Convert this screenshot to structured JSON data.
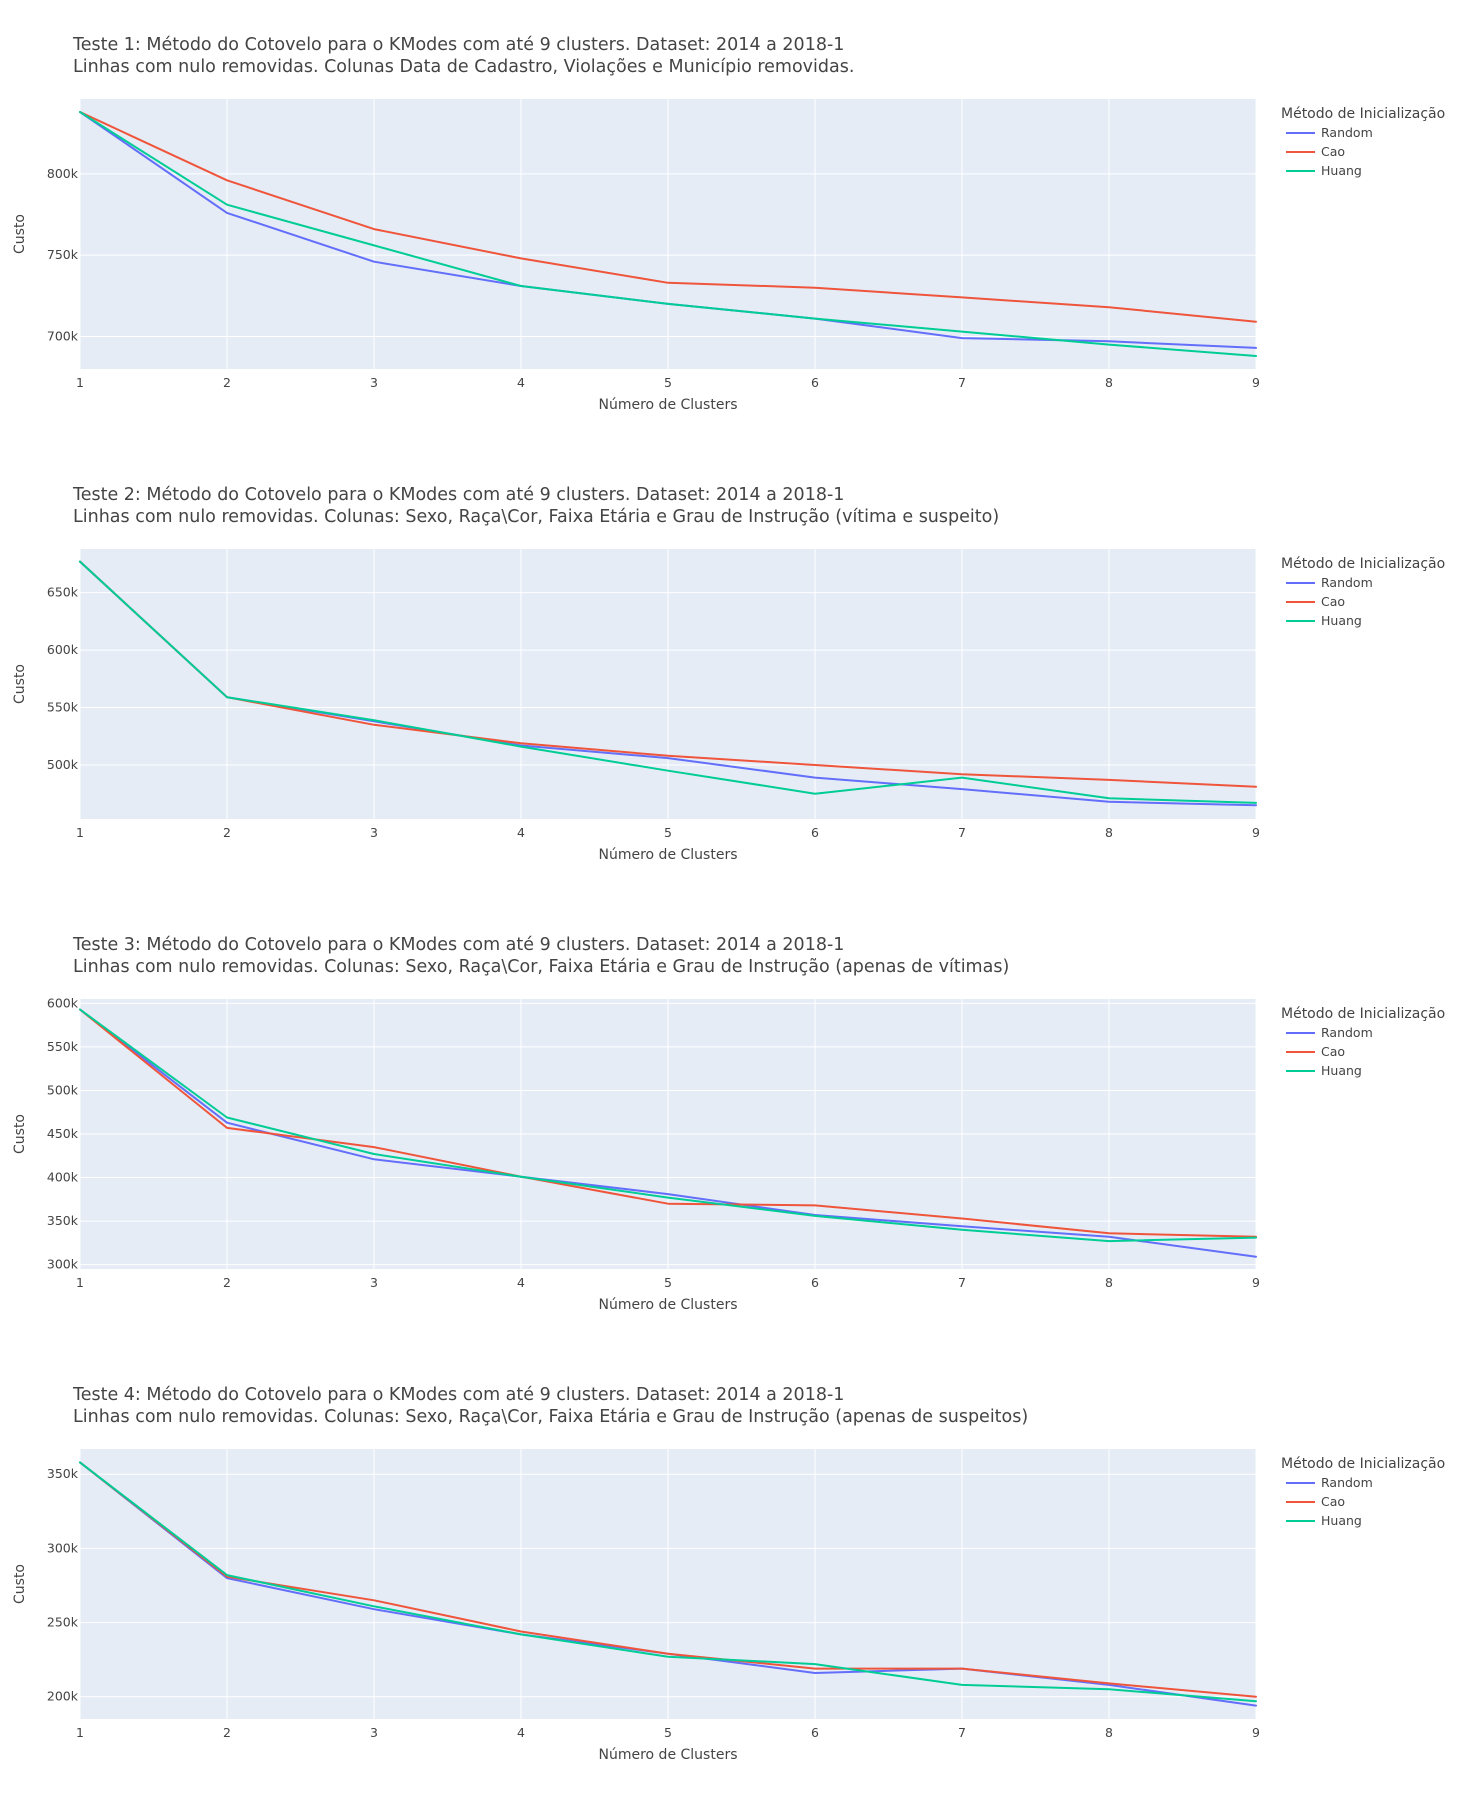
{
  "chart_data": [
    {
      "type": "line",
      "title": "Teste 1: Método do Cotovelo para o KModes com até 9 clusters. Dataset: 2014 a 2018-1",
      "subtitle": "Linhas com nulo removidas. Colunas Data de Cadastro, Violações e Município removidas.",
      "xlabel": "Número de Clusters",
      "ylabel": "Custo",
      "x": [
        1,
        2,
        3,
        4,
        5,
        6,
        7,
        8,
        9
      ],
      "xlim": [
        1,
        9
      ],
      "ylim": [
        680000,
        846000
      ],
      "yticks": [
        700000,
        750000,
        800000
      ],
      "ytick_labels": [
        "700k",
        "750k",
        "800k"
      ],
      "legend_title": "Método de Inicialização",
      "legend_position": "right",
      "grid": true,
      "series": [
        {
          "name": "Random",
          "color": "#636efa",
          "values": [
            838000,
            776000,
            746000,
            731000,
            720000,
            711000,
            699000,
            697000,
            693000
          ]
        },
        {
          "name": "Cao",
          "color": "#ef553b",
          "values": [
            838000,
            796000,
            766000,
            748000,
            733000,
            730000,
            724000,
            718000,
            709000
          ]
        },
        {
          "name": "Huang",
          "color": "#00cc96",
          "values": [
            838000,
            781000,
            756000,
            731000,
            720000,
            711000,
            703000,
            695000,
            688000
          ]
        }
      ]
    },
    {
      "type": "line",
      "title": "Teste 2: Método do Cotovelo para o KModes com até 9 clusters. Dataset: 2014 a 2018-1",
      "subtitle": "Linhas com nulo removidas. Colunas: Sexo, Raça\\Cor, Faixa Etária e Grau de Instrução (vítima e suspeito)",
      "xlabel": "Número de Clusters",
      "ylabel": "Custo",
      "x": [
        1,
        2,
        3,
        4,
        5,
        6,
        7,
        8,
        9
      ],
      "xlim": [
        1,
        9
      ],
      "ylim": [
        453000,
        688000
      ],
      "yticks": [
        500000,
        550000,
        600000,
        650000
      ],
      "ytick_labels": [
        "500k",
        "550k",
        "600k",
        "650k"
      ],
      "legend_title": "Método de Inicialização",
      "legend_position": "right",
      "grid": true,
      "series": [
        {
          "name": "Random",
          "color": "#636efa",
          "values": [
            677000,
            559000,
            538000,
            517000,
            506000,
            489000,
            479000,
            468000,
            465000
          ]
        },
        {
          "name": "Cao",
          "color": "#ef553b",
          "values": [
            677000,
            559000,
            535000,
            519000,
            508000,
            500000,
            492000,
            487000,
            481000
          ]
        },
        {
          "name": "Huang",
          "color": "#00cc96",
          "values": [
            677000,
            559000,
            539000,
            516000,
            495000,
            475000,
            489000,
            471000,
            467000
          ]
        }
      ]
    },
    {
      "type": "line",
      "title": "Teste 3: Método do Cotovelo para o KModes com até 9 clusters. Dataset: 2014 a 2018-1",
      "subtitle": "Linhas com nulo removidas. Colunas: Sexo, Raça\\Cor, Faixa Etária e Grau de Instrução (apenas de vítimas)",
      "xlabel": "Número de Clusters",
      "ylabel": "Custo",
      "x": [
        1,
        2,
        3,
        4,
        5,
        6,
        7,
        8,
        9
      ],
      "xlim": [
        1,
        9
      ],
      "ylim": [
        295000,
        605000
      ],
      "yticks": [
        300000,
        350000,
        400000,
        450000,
        500000,
        550000,
        600000
      ],
      "ytick_labels": [
        "300k",
        "350k",
        "400k",
        "450k",
        "500k",
        "550k",
        "600k"
      ],
      "legend_title": "Método de Inicialização",
      "legend_position": "right",
      "grid": true,
      "series": [
        {
          "name": "Random",
          "color": "#636efa",
          "values": [
            593000,
            463000,
            421000,
            401000,
            381000,
            357000,
            344000,
            332000,
            309000
          ]
        },
        {
          "name": "Cao",
          "color": "#ef553b",
          "values": [
            593000,
            457000,
            435000,
            401000,
            370000,
            368000,
            353000,
            336000,
            332000
          ]
        },
        {
          "name": "Huang",
          "color": "#00cc96",
          "values": [
            593000,
            469000,
            427000,
            401000,
            377000,
            356000,
            340000,
            327000,
            331000
          ]
        }
      ]
    },
    {
      "type": "line",
      "title": "Teste 4: Método do Cotovelo para o KModes com até 9 clusters. Dataset: 2014 a 2018-1",
      "subtitle": "Linhas com nulo removidas. Colunas: Sexo, Raça\\Cor, Faixa Etária e Grau de Instrução (apenas de suspeitos)",
      "xlabel": "Número de Clusters",
      "ylabel": "Custo",
      "x": [
        1,
        2,
        3,
        4,
        5,
        6,
        7,
        8,
        9
      ],
      "xlim": [
        1,
        9
      ],
      "ylim": [
        185000,
        367000
      ],
      "yticks": [
        200000,
        250000,
        300000,
        350000
      ],
      "ytick_labels": [
        "200k",
        "250k",
        "300k",
        "350k"
      ],
      "legend_title": "Método de Inicialização",
      "legend_position": "right",
      "grid": true,
      "series": [
        {
          "name": "Random",
          "color": "#636efa",
          "values": [
            358000,
            280000,
            259000,
            242000,
            229000,
            216000,
            219000,
            208000,
            194000
          ]
        },
        {
          "name": "Cao",
          "color": "#ef553b",
          "values": [
            358000,
            281000,
            265000,
            244000,
            229000,
            219000,
            219000,
            209000,
            200000
          ]
        },
        {
          "name": "Huang",
          "color": "#00cc96",
          "values": [
            358000,
            282000,
            261000,
            242000,
            227000,
            222000,
            208000,
            205000,
            197000
          ]
        }
      ]
    }
  ]
}
